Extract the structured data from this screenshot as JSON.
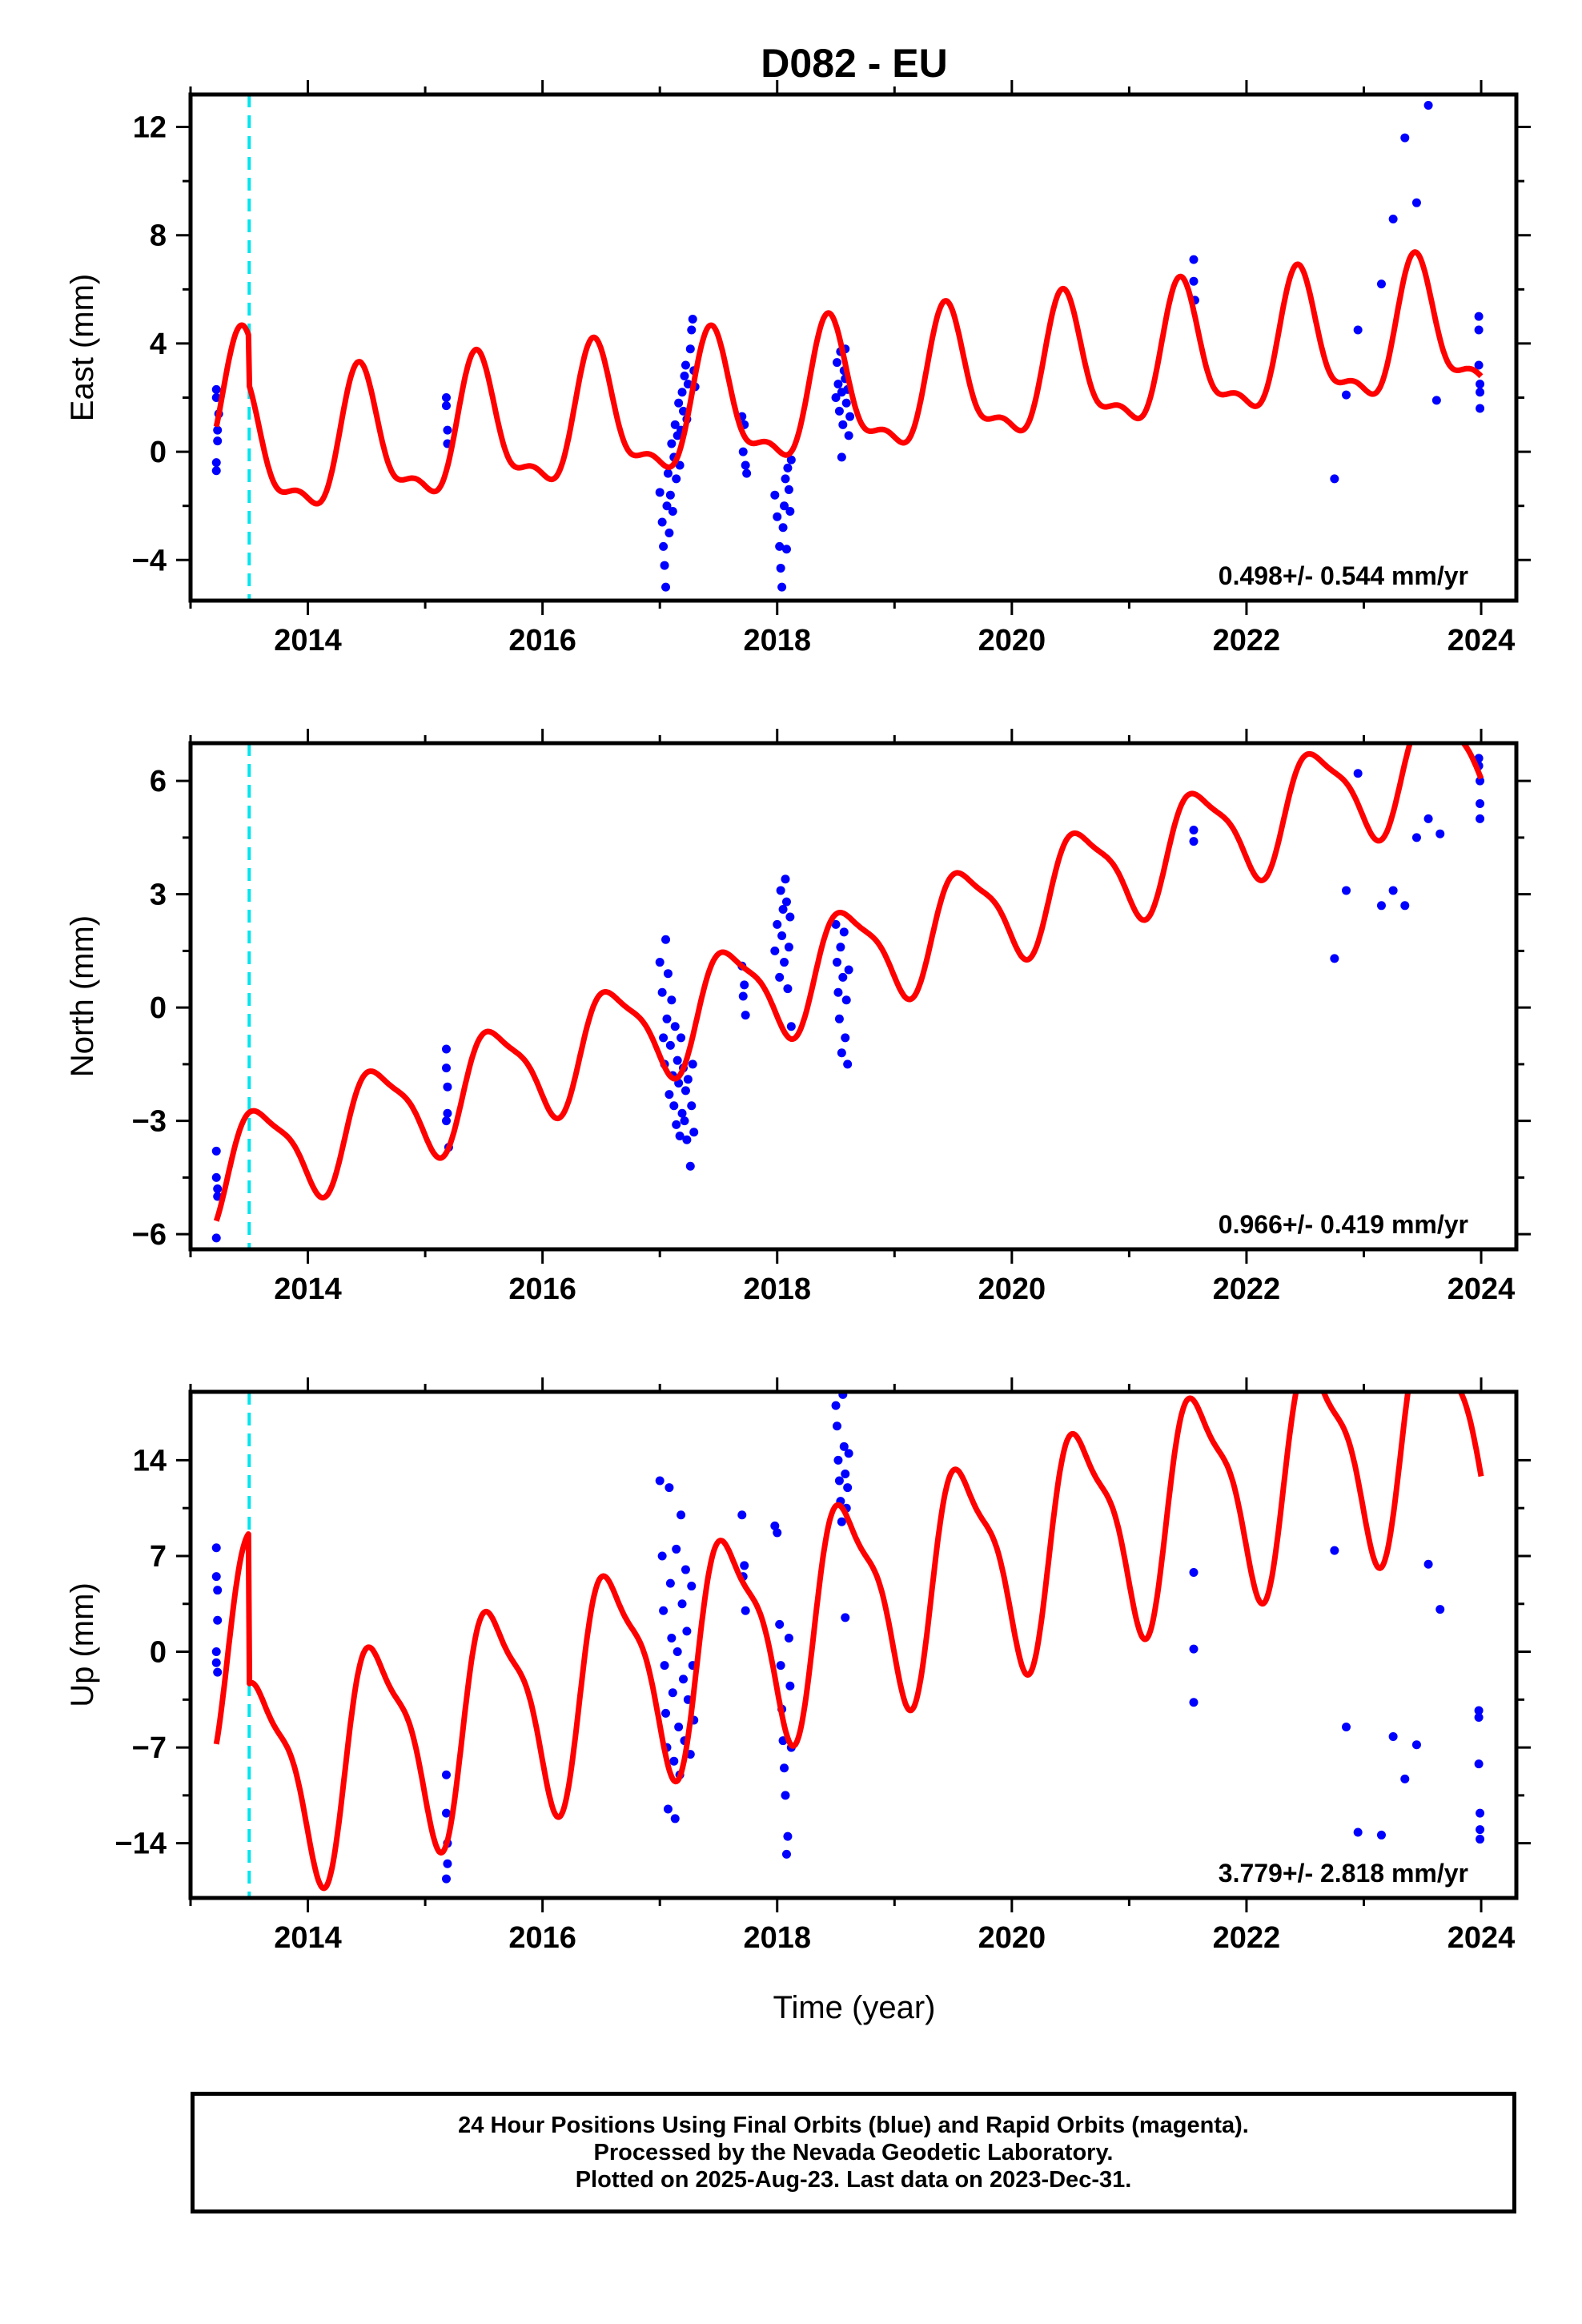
{
  "title": "D082 - EU",
  "xlabel": "Time (year)",
  "footer": {
    "line1": "24 Hour Positions Using Final Orbits (blue) and Rapid Orbits (magenta).",
    "line2": "Processed by the Nevada Geodetic Laboratory.",
    "line3": "Plotted on 2025-Aug-23. Last data on 2023-Dec-31."
  },
  "colors": {
    "data": "#0000ff",
    "model": "#ff0000",
    "event": "#00e5ee"
  },
  "chart_data": [
    {
      "type": "scatter",
      "ylabel": "East (mm)",
      "rate": "0.498+/- 0.544 mm/yr",
      "xlim": [
        2013.0,
        2024.3
      ],
      "ylim": [
        -5.5,
        13.2
      ],
      "xticks": [
        2014,
        2016,
        2018,
        2020,
        2022,
        2024
      ],
      "yticks": [
        -4,
        0,
        4,
        8,
        12
      ],
      "event_line": 2013.5,
      "points": [
        [
          2013.22,
          2.3
        ],
        [
          2013.22,
          2.0
        ],
        [
          2013.23,
          0.8
        ],
        [
          2013.23,
          0.4
        ],
        [
          2013.22,
          -0.4
        ],
        [
          2013.22,
          -0.7
        ],
        [
          2013.24,
          1.4
        ],
        [
          2015.18,
          2.0
        ],
        [
          2015.18,
          1.7
        ],
        [
          2015.19,
          0.8
        ],
        [
          2015.19,
          0.3
        ],
        [
          2017.0,
          -1.5
        ],
        [
          2017.02,
          -2.6
        ],
        [
          2017.03,
          -3.5
        ],
        [
          2017.04,
          -4.2
        ],
        [
          2017.05,
          -5.0
        ],
        [
          2017.06,
          -2.0
        ],
        [
          2017.07,
          -0.8
        ],
        [
          2017.08,
          -3.0
        ],
        [
          2017.09,
          -1.6
        ],
        [
          2017.1,
          0.3
        ],
        [
          2017.11,
          -2.2
        ],
        [
          2017.12,
          -0.2
        ],
        [
          2017.13,
          1.0
        ],
        [
          2017.14,
          -1.0
        ],
        [
          2017.15,
          0.6
        ],
        [
          2017.16,
          1.8
        ],
        [
          2017.17,
          -0.5
        ],
        [
          2017.18,
          0.8
        ],
        [
          2017.19,
          2.2
        ],
        [
          2017.2,
          1.5
        ],
        [
          2017.21,
          2.8
        ],
        [
          2017.22,
          3.2
        ],
        [
          2017.23,
          1.2
        ],
        [
          2017.24,
          2.5
        ],
        [
          2017.26,
          3.8
        ],
        [
          2017.27,
          4.5
        ],
        [
          2017.28,
          4.9
        ],
        [
          2017.29,
          3.0
        ],
        [
          2017.3,
          2.4
        ],
        [
          2017.7,
          1.3
        ],
        [
          2017.72,
          1.0
        ],
        [
          2017.73,
          -0.5
        ],
        [
          2017.74,
          -0.8
        ],
        [
          2017.71,
          0.0
        ],
        [
          2017.98,
          -1.6
        ],
        [
          2018.0,
          -2.4
        ],
        [
          2018.02,
          -3.5
        ],
        [
          2018.03,
          -4.3
        ],
        [
          2018.04,
          -5.0
        ],
        [
          2018.05,
          -2.8
        ],
        [
          2018.06,
          -2.0
        ],
        [
          2018.07,
          -1.0
        ],
        [
          2018.08,
          -3.6
        ],
        [
          2018.09,
          -0.6
        ],
        [
          2018.1,
          -1.4
        ],
        [
          2018.11,
          -2.2
        ],
        [
          2018.12,
          -0.3
        ],
        [
          2018.5,
          2.0
        ],
        [
          2018.51,
          3.3
        ],
        [
          2018.52,
          2.5
        ],
        [
          2018.53,
          1.5
        ],
        [
          2018.54,
          3.7
        ],
        [
          2018.55,
          2.2
        ],
        [
          2018.56,
          1.0
        ],
        [
          2018.57,
          3.0
        ],
        [
          2018.58,
          2.7
        ],
        [
          2018.59,
          1.8
        ],
        [
          2018.6,
          2.3
        ],
        [
          2018.61,
          0.6
        ],
        [
          2018.62,
          1.3
        ],
        [
          2018.55,
          -0.2
        ],
        [
          2018.58,
          3.8
        ],
        [
          2021.55,
          7.1
        ],
        [
          2021.55,
          6.3
        ],
        [
          2021.56,
          5.6
        ],
        [
          2022.75,
          -1.0
        ],
        [
          2022.85,
          2.1
        ],
        [
          2022.95,
          4.5
        ],
        [
          2023.15,
          6.2
        ],
        [
          2023.25,
          8.6
        ],
        [
          2023.35,
          11.6
        ],
        [
          2023.45,
          9.2
        ],
        [
          2023.55,
          12.8
        ],
        [
          2023.62,
          1.9
        ],
        [
          2023.98,
          5.0
        ],
        [
          2023.98,
          4.5
        ],
        [
          2023.98,
          3.2
        ],
        [
          2023.99,
          2.5
        ],
        [
          2023.99,
          1.6
        ],
        [
          2023.99,
          2.2
        ]
      ]
    },
    {
      "type": "scatter",
      "ylabel": "North (mm)",
      "rate": "0.966+/- 0.419 mm/yr",
      "xlim": [
        2013.0,
        2024.3
      ],
      "ylim": [
        -6.4,
        7.0
      ],
      "xticks": [
        2014,
        2016,
        2018,
        2020,
        2022,
        2024
      ],
      "yticks": [
        -6,
        -3,
        0,
        3,
        6
      ],
      "event_line": 2013.5,
      "points": [
        [
          2013.22,
          -3.8
        ],
        [
          2013.22,
          -4.5
        ],
        [
          2013.23,
          -5.0
        ],
        [
          2013.23,
          -4.8
        ],
        [
          2013.22,
          -6.1
        ],
        [
          2015.18,
          -1.1
        ],
        [
          2015.18,
          -1.6
        ],
        [
          2015.19,
          -2.1
        ],
        [
          2015.19,
          -2.8
        ],
        [
          2015.18,
          -3.0
        ],
        [
          2015.2,
          -3.7
        ],
        [
          2017.0,
          1.2
        ],
        [
          2017.02,
          0.4
        ],
        [
          2017.03,
          -0.8
        ],
        [
          2017.04,
          -1.5
        ],
        [
          2017.05,
          1.8
        ],
        [
          2017.06,
          -0.3
        ],
        [
          2017.07,
          0.9
        ],
        [
          2017.08,
          -2.3
        ],
        [
          2017.09,
          -1.0
        ],
        [
          2017.1,
          0.2
        ],
        [
          2017.11,
          -1.8
        ],
        [
          2017.12,
          -2.6
        ],
        [
          2017.13,
          -0.5
        ],
        [
          2017.14,
          -3.1
        ],
        [
          2017.15,
          -1.4
        ],
        [
          2017.16,
          -2.0
        ],
        [
          2017.17,
          -3.4
        ],
        [
          2017.18,
          -0.8
        ],
        [
          2017.19,
          -2.8
        ],
        [
          2017.2,
          -1.6
        ],
        [
          2017.21,
          -3.0
        ],
        [
          2017.22,
          -2.2
        ],
        [
          2017.23,
          -3.5
        ],
        [
          2017.24,
          -1.9
        ],
        [
          2017.26,
          -4.2
        ],
        [
          2017.27,
          -2.6
        ],
        [
          2017.28,
          -1.5
        ],
        [
          2017.29,
          -3.3
        ],
        [
          2017.7,
          1.1
        ],
        [
          2017.72,
          0.6
        ],
        [
          2017.73,
          -0.2
        ],
        [
          2017.71,
          0.3
        ],
        [
          2017.98,
          1.5
        ],
        [
          2018.0,
          2.2
        ],
        [
          2018.02,
          0.8
        ],
        [
          2018.03,
          3.1
        ],
        [
          2018.04,
          1.9
        ],
        [
          2018.05,
          2.6
        ],
        [
          2018.06,
          1.2
        ],
        [
          2018.07,
          3.4
        ],
        [
          2018.08,
          2.8
        ],
        [
          2018.09,
          0.5
        ],
        [
          2018.1,
          1.6
        ],
        [
          2018.11,
          2.4
        ],
        [
          2018.12,
          -0.5
        ],
        [
          2018.5,
          2.2
        ],
        [
          2018.51,
          1.2
        ],
        [
          2018.52,
          0.4
        ],
        [
          2018.53,
          -0.3
        ],
        [
          2018.54,
          1.6
        ],
        [
          2018.55,
          -1.2
        ],
        [
          2018.56,
          0.8
        ],
        [
          2018.57,
          2.0
        ],
        [
          2018.58,
          -0.8
        ],
        [
          2018.59,
          0.2
        ],
        [
          2018.6,
          -1.5
        ],
        [
          2018.61,
          1.0
        ],
        [
          2021.55,
          4.7
        ],
        [
          2021.55,
          4.4
        ],
        [
          2022.75,
          1.3
        ],
        [
          2022.85,
          3.1
        ],
        [
          2022.95,
          6.2
        ],
        [
          2023.15,
          2.7
        ],
        [
          2023.25,
          3.1
        ],
        [
          2023.35,
          2.7
        ],
        [
          2023.45,
          4.5
        ],
        [
          2023.55,
          5.0
        ],
        [
          2023.65,
          4.6
        ],
        [
          2023.98,
          6.6
        ],
        [
          2023.98,
          6.4
        ],
        [
          2023.99,
          6.0
        ],
        [
          2023.99,
          5.4
        ],
        [
          2023.99,
          5.0
        ]
      ]
    },
    {
      "type": "scatter",
      "ylabel": "Up (mm)",
      "rate": "3.779+/- 2.818 mm/yr",
      "xlim": [
        2013.0,
        2024.3
      ],
      "ylim": [
        -18.0,
        19.0
      ],
      "xticks": [
        2014,
        2016,
        2018,
        2020,
        2022,
        2024
      ],
      "yticks": [
        -14,
        -7,
        0,
        7,
        14
      ],
      "event_line": 2013.5,
      "points": [
        [
          2013.22,
          7.6
        ],
        [
          2013.22,
          5.5
        ],
        [
          2013.23,
          4.5
        ],
        [
          2013.23,
          2.3
        ],
        [
          2013.22,
          0.0
        ],
        [
          2013.22,
          -0.8
        ],
        [
          2013.23,
          -1.5
        ],
        [
          2015.18,
          -9.0
        ],
        [
          2015.18,
          -11.8
        ],
        [
          2015.19,
          -14.0
        ],
        [
          2015.19,
          -15.5
        ],
        [
          2015.18,
          -16.6
        ],
        [
          2017.0,
          12.5
        ],
        [
          2017.02,
          7.0
        ],
        [
          2017.03,
          3.0
        ],
        [
          2017.04,
          -1.0
        ],
        [
          2017.05,
          -4.5
        ],
        [
          2017.06,
          -7.0
        ],
        [
          2017.07,
          -11.5
        ],
        [
          2017.08,
          12.0
        ],
        [
          2017.09,
          5.0
        ],
        [
          2017.1,
          1.0
        ],
        [
          2017.11,
          -3.0
        ],
        [
          2017.12,
          -8.0
        ],
        [
          2017.13,
          -12.2
        ],
        [
          2017.14,
          7.5
        ],
        [
          2017.15,
          0.0
        ],
        [
          2017.16,
          -5.5
        ],
        [
          2017.17,
          -9.0
        ],
        [
          2017.18,
          10.0
        ],
        [
          2017.19,
          3.5
        ],
        [
          2017.2,
          -2.0
        ],
        [
          2017.21,
          -6.5
        ],
        [
          2017.22,
          6.0
        ],
        [
          2017.23,
          1.5
        ],
        [
          2017.24,
          -3.5
        ],
        [
          2017.26,
          -7.5
        ],
        [
          2017.27,
          4.8
        ],
        [
          2017.28,
          -1.0
        ],
        [
          2017.29,
          -5.0
        ],
        [
          2017.7,
          10.0
        ],
        [
          2017.72,
          6.3
        ],
        [
          2017.73,
          3.0
        ],
        [
          2017.71,
          5.5
        ],
        [
          2017.98,
          9.2
        ],
        [
          2018.0,
          8.7
        ],
        [
          2018.02,
          2.0
        ],
        [
          2018.03,
          -1.0
        ],
        [
          2018.04,
          -4.2
        ],
        [
          2018.05,
          -6.5
        ],
        [
          2018.06,
          -8.5
        ],
        [
          2018.07,
          -10.5
        ],
        [
          2018.08,
          -14.8
        ],
        [
          2018.09,
          -13.5
        ],
        [
          2018.1,
          1.0
        ],
        [
          2018.11,
          -2.5
        ],
        [
          2018.12,
          -7.0
        ],
        [
          2018.5,
          18.0
        ],
        [
          2018.51,
          16.5
        ],
        [
          2018.52,
          14.0
        ],
        [
          2018.53,
          12.5
        ],
        [
          2018.54,
          11.0
        ],
        [
          2018.55,
          9.5
        ],
        [
          2018.56,
          18.8
        ],
        [
          2018.57,
          15.0
        ],
        [
          2018.58,
          13.0
        ],
        [
          2018.59,
          10.5
        ],
        [
          2018.6,
          12.0
        ],
        [
          2018.61,
          14.5
        ],
        [
          2018.58,
          2.5
        ],
        [
          2021.55,
          5.8
        ],
        [
          2021.55,
          0.2
        ],
        [
          2021.55,
          -3.7
        ],
        [
          2022.75,
          7.4
        ],
        [
          2022.85,
          -5.5
        ],
        [
          2022.95,
          -13.2
        ],
        [
          2023.15,
          -13.4
        ],
        [
          2023.25,
          -6.2
        ],
        [
          2023.35,
          -9.3
        ],
        [
          2023.45,
          -6.8
        ],
        [
          2023.55,
          6.4
        ],
        [
          2023.65,
          3.1
        ],
        [
          2023.98,
          -4.3
        ],
        [
          2023.98,
          -4.8
        ],
        [
          2023.98,
          -8.2
        ],
        [
          2023.99,
          -11.8
        ],
        [
          2023.99,
          -13.0
        ],
        [
          2023.99,
          -13.7
        ]
      ]
    }
  ]
}
